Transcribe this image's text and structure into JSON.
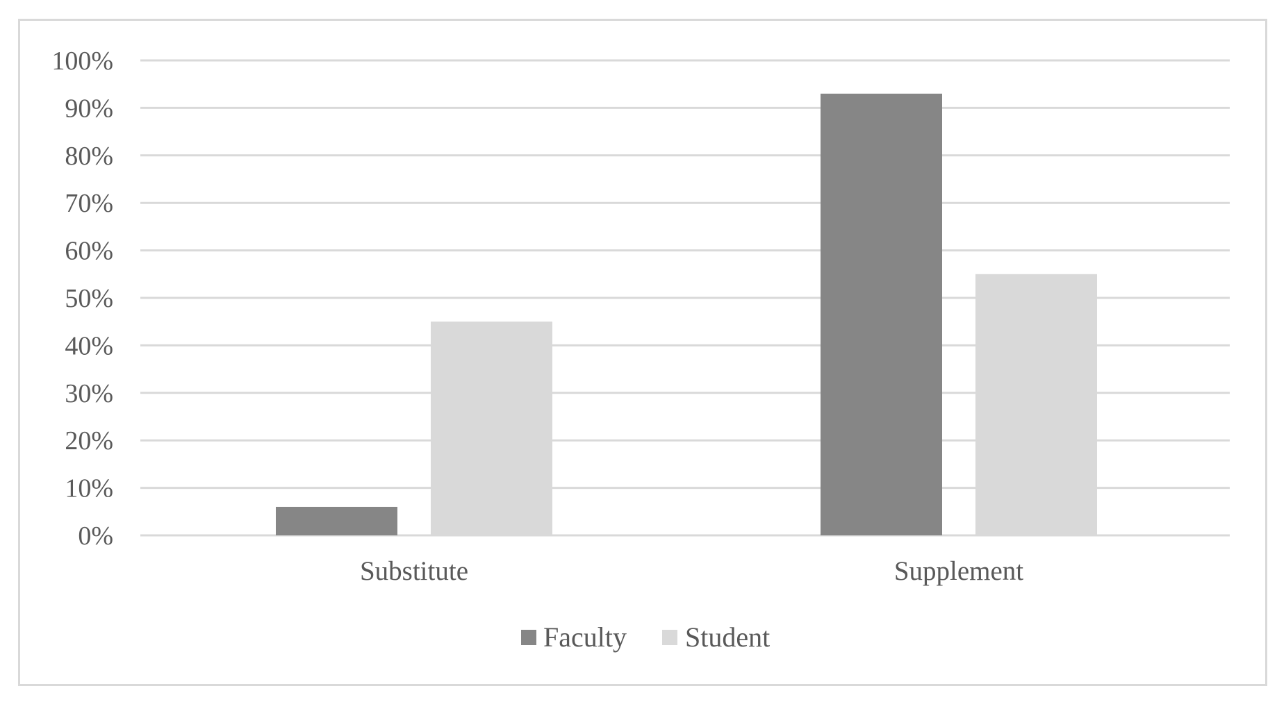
{
  "chart_data": {
    "type": "bar",
    "title": "",
    "xlabel": "",
    "ylabel": "",
    "categories": [
      "Substitute",
      "Supplement"
    ],
    "series": [
      {
        "name": "Faculty",
        "values": [
          6,
          93
        ],
        "color": "#868686"
      },
      {
        "name": "Student",
        "values": [
          45,
          55
        ],
        "color": "#d9d9d9"
      }
    ],
    "ylim": [
      0,
      100
    ],
    "y_ticks": [
      "0%",
      "10%",
      "20%",
      "30%",
      "40%",
      "50%",
      "60%",
      "70%",
      "80%",
      "90%",
      "100%"
    ],
    "grid": true,
    "legend_position": "bottom",
    "gridline_color": "#d9d9d9",
    "text_color": "#595959"
  }
}
